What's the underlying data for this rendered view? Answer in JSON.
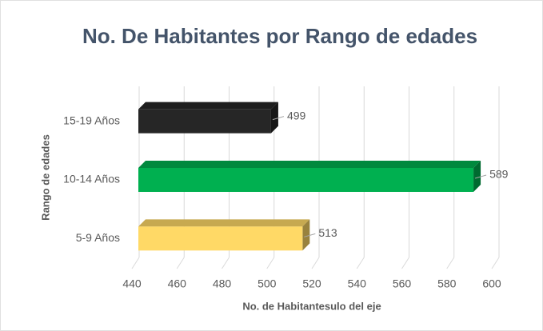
{
  "chart_data": {
    "type": "bar3d-horizontal",
    "title": "No. De Habitantes por Rango de edades",
    "x_label": "No. de Habitantesulo del eje",
    "y_label": "Rango de edades",
    "categories": [
      "5-9 Años",
      "10-14 Años",
      "15-19 Años"
    ],
    "values": [
      513,
      589,
      499
    ],
    "colors": [
      "#ffd966",
      "#00b050",
      "#262626"
    ],
    "xlim": [
      440,
      600
    ],
    "xticks": [
      440,
      460,
      480,
      500,
      520,
      540,
      560,
      580,
      600
    ],
    "grid": true
  }
}
